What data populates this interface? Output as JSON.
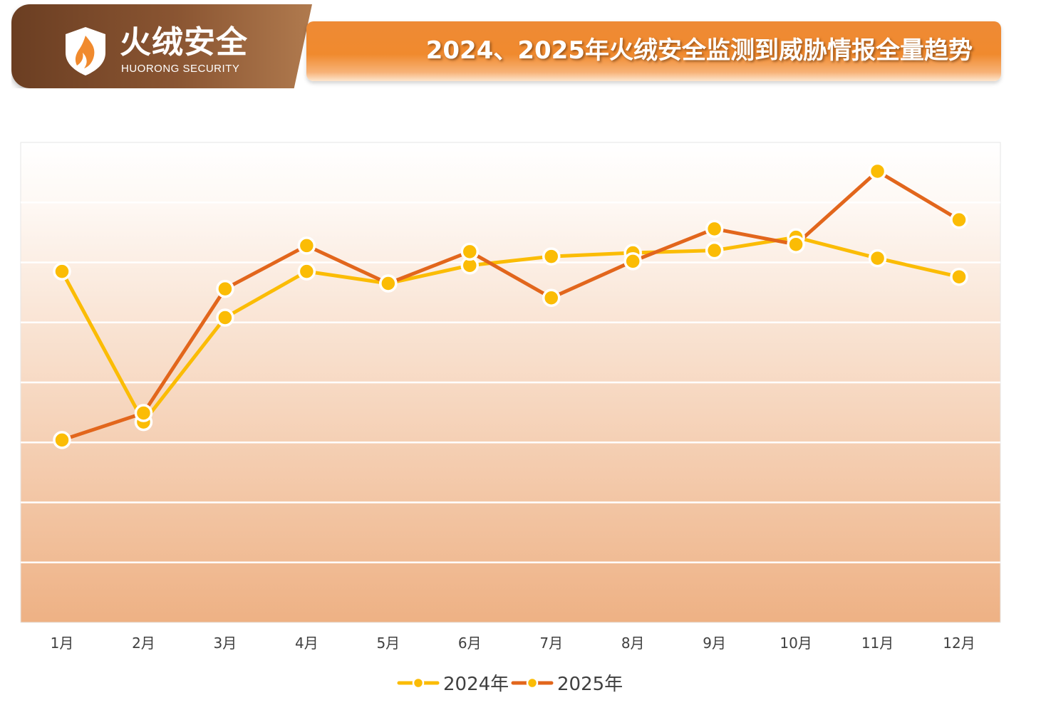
{
  "header": {
    "brand_name": "火绒安全",
    "brand_sub": "HUORONG SECURITY",
    "title": "2024、2025年火绒安全监测到威胁情报全量趋势"
  },
  "colors": {
    "series_2024": "#fbbc05",
    "series_2025": "#e2661c",
    "marker_fill": "#fbbc05",
    "accent_orange": "#f08a2e",
    "brand_brown": "#7a4a2a"
  },
  "chart_data": {
    "type": "line",
    "title": "2024、2025年火绒安全监测到威胁情报全量趋势",
    "categories": [
      "1月",
      "2月",
      "3月",
      "4月",
      "5月",
      "6月",
      "7月",
      "8月",
      "9月",
      "10月",
      "11月",
      "12月"
    ],
    "series": [
      {
        "name": "2024年",
        "values": [
          5.85,
          3.34,
          5.08,
          5.85,
          5.65,
          5.95,
          6.1,
          6.16,
          6.2,
          6.42,
          6.07,
          5.76
        ]
      },
      {
        "name": "2025年",
        "values": [
          3.04,
          3.49,
          5.56,
          6.28,
          5.65,
          6.18,
          5.41,
          6.02,
          6.56,
          6.3,
          7.52,
          6.71
        ]
      }
    ],
    "ylim": [
      0,
      8
    ],
    "y_tick_labels_visible": false,
    "grid": true,
    "legend_position": "bottom"
  }
}
